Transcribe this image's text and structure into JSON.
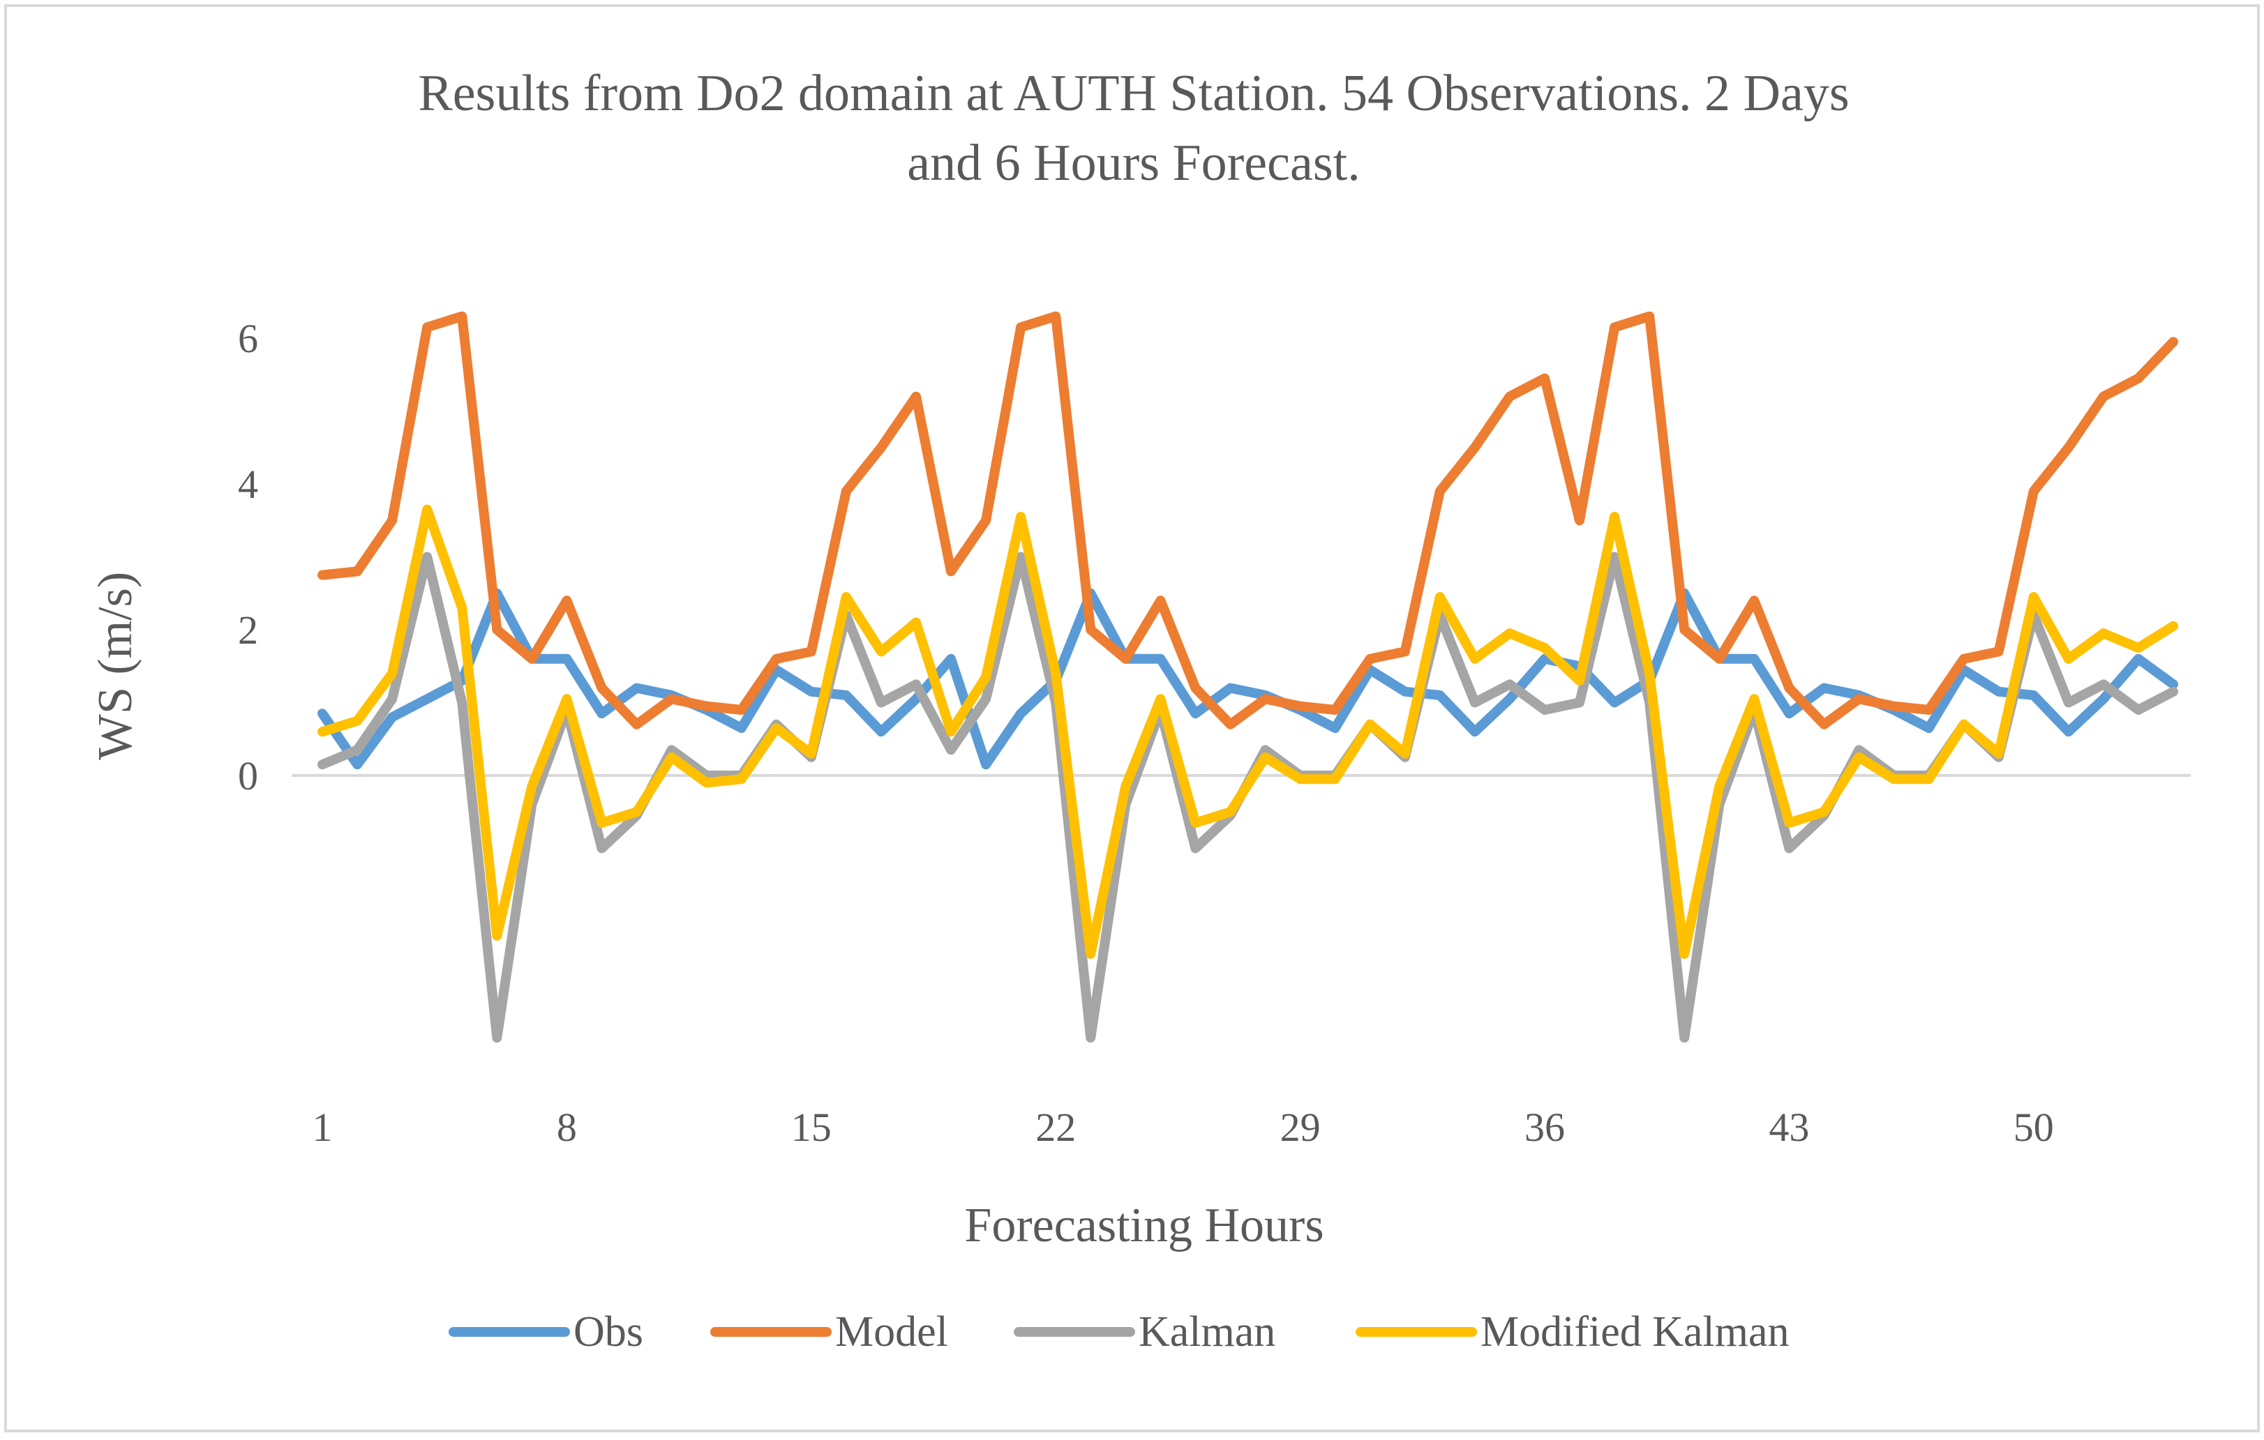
{
  "chart_data": {
    "type": "line",
    "title_lines": [
      "Results from Do2  domain at AUTH  Station. 54  Observations. 2 Days",
      "and 6 Hours Forecast."
    ],
    "xlabel": "Forecasting Hours",
    "ylabel": "WS (m/s)",
    "x": [
      1,
      2,
      3,
      4,
      5,
      6,
      7,
      8,
      9,
      10,
      11,
      12,
      13,
      14,
      15,
      16,
      17,
      18,
      19,
      20,
      21,
      22,
      23,
      24,
      25,
      26,
      27,
      28,
      29,
      30,
      31,
      32,
      33,
      34,
      35,
      36,
      37,
      38,
      39,
      40,
      41,
      42,
      43,
      44,
      45,
      46,
      47,
      48,
      49,
      50,
      51,
      52,
      53,
      54
    ],
    "x_tick_labels": [
      "1",
      "8",
      "15",
      "22",
      "29",
      "36",
      "43",
      "50"
    ],
    "x_tick_values": [
      1,
      8,
      15,
      22,
      29,
      36,
      43,
      50
    ],
    "y_tick_labels": [
      "0",
      "2",
      "4",
      "6"
    ],
    "y_tick_values": [
      0,
      2,
      4,
      6
    ],
    "ylim": [
      -4.4,
      6.4
    ],
    "grid": "zero-line",
    "legend_position": "bottom",
    "series": [
      {
        "name": "Obs",
        "color": "#5B9BD5",
        "values": [
          0.85,
          0.15,
          0.8,
          1.05,
          1.3,
          2.5,
          1.6,
          1.6,
          0.85,
          1.2,
          1.1,
          0.9,
          0.65,
          1.45,
          1.15,
          1.1,
          0.6,
          1.05,
          1.6,
          0.15,
          0.85,
          1.3,
          2.5,
          1.6,
          1.6,
          0.85,
          1.2,
          1.1,
          0.9,
          0.65,
          1.45,
          1.15,
          1.1,
          0.6,
          1.05,
          1.6,
          1.5,
          1.0,
          1.3,
          2.5,
          1.6,
          1.6,
          0.85,
          1.2,
          1.1,
          0.9,
          0.65,
          1.45,
          1.15,
          1.1,
          0.6,
          1.05,
          1.6,
          1.25
        ]
      },
      {
        "name": "Model",
        "color": "#ED7D31",
        "values": [
          2.75,
          2.8,
          3.5,
          6.15,
          6.3,
          2.0,
          1.6,
          2.4,
          1.2,
          0.7,
          1.05,
          0.95,
          0.9,
          1.6,
          1.7,
          3.9,
          4.5,
          5.2,
          2.8,
          3.5,
          6.15,
          6.3,
          2.0,
          1.6,
          2.4,
          1.2,
          0.7,
          1.05,
          0.95,
          0.9,
          1.6,
          1.7,
          3.9,
          4.5,
          5.2,
          5.45,
          3.5,
          6.15,
          6.3,
          2.0,
          1.6,
          2.4,
          1.2,
          0.7,
          1.05,
          0.95,
          0.9,
          1.6,
          1.7,
          3.9,
          4.5,
          5.2,
          5.45,
          5.95
        ]
      },
      {
        "name": "Kalman",
        "color": "#A5A5A5",
        "values": [
          0.15,
          0.35,
          1.05,
          3.0,
          1.0,
          -3.6,
          -0.4,
          0.9,
          -1.0,
          -0.55,
          0.35,
          0.0,
          0.0,
          0.7,
          0.25,
          2.2,
          1.0,
          1.25,
          0.35,
          1.05,
          3.0,
          1.0,
          -3.6,
          -0.4,
          0.9,
          -1.0,
          -0.55,
          0.35,
          0.0,
          0.0,
          0.7,
          0.25,
          2.2,
          1.0,
          1.25,
          0.9,
          1.0,
          3.0,
          1.0,
          -3.6,
          -0.4,
          0.9,
          -1.0,
          -0.55,
          0.35,
          0.0,
          0.0,
          0.7,
          0.25,
          2.2,
          1.0,
          1.25,
          0.9,
          1.15
        ]
      },
      {
        "name": "Modified Kalman",
        "color": "#FFC000",
        "values": [
          0.6,
          0.75,
          1.4,
          3.65,
          2.3,
          -2.2,
          -0.15,
          1.05,
          -0.65,
          -0.5,
          0.25,
          -0.1,
          -0.05,
          0.65,
          0.3,
          2.45,
          1.7,
          2.1,
          0.6,
          1.35,
          3.55,
          1.4,
          -2.45,
          -0.15,
          1.05,
          -0.65,
          -0.5,
          0.25,
          -0.05,
          -0.05,
          0.7,
          0.3,
          2.45,
          1.6,
          1.95,
          1.75,
          1.3,
          3.55,
          1.4,
          -2.45,
          -0.15,
          1.05,
          -0.65,
          -0.5,
          0.25,
          -0.05,
          -0.05,
          0.7,
          0.3,
          2.45,
          1.6,
          1.95,
          1.75,
          2.05
        ]
      }
    ]
  }
}
